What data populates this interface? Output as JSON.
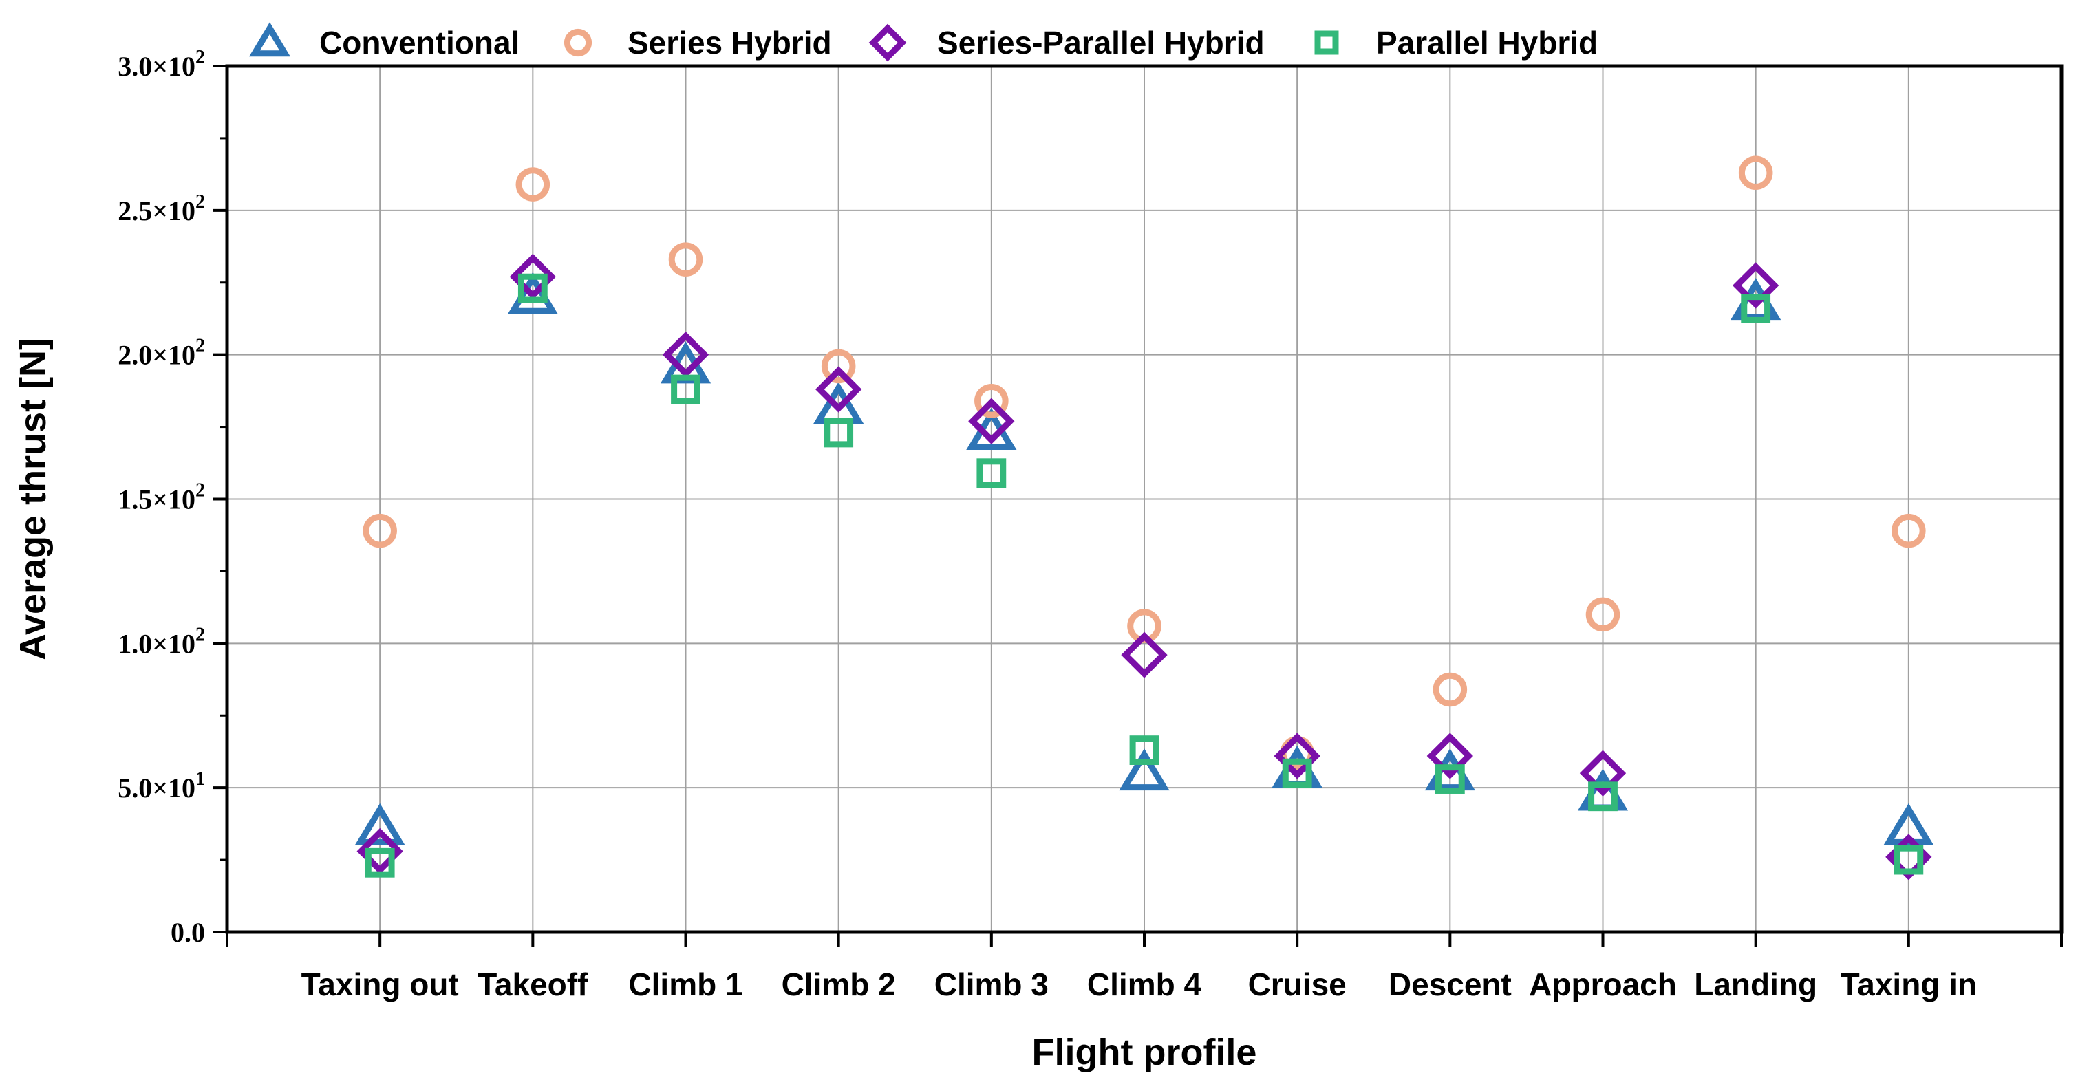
{
  "chart_data": {
    "type": "scatter",
    "title": "",
    "xlabel": "Flight profile",
    "ylabel": "Average thrust [N]",
    "ylim": [
      0,
      300
    ],
    "yticks": [
      {
        "value": 0,
        "mantissa": "0.0",
        "exp": ""
      },
      {
        "value": 50,
        "mantissa": "5.0×10",
        "exp": "1"
      },
      {
        "value": 100,
        "mantissa": "1.0×10",
        "exp": "2"
      },
      {
        "value": 150,
        "mantissa": "1.5×10",
        "exp": "2"
      },
      {
        "value": 200,
        "mantissa": "2.0×10",
        "exp": "2"
      },
      {
        "value": 250,
        "mantissa": "2.5×10",
        "exp": "2"
      },
      {
        "value": 300,
        "mantissa": "3.0×10",
        "exp": "2"
      }
    ],
    "categories": [
      "Taxing out",
      "Takeoff",
      "Climb 1",
      "Climb 2",
      "Climb 3",
      "Climb 4",
      "Cruise",
      "Descent",
      "Approach",
      "Landing",
      "Taxing in"
    ],
    "grid": true,
    "legend_position": "top",
    "series": [
      {
        "name": "Conventional",
        "marker": "triangle",
        "color": "#2e75b6",
        "values": [
          36,
          220,
          196,
          182,
          173,
          55,
          56,
          55,
          48,
          218,
          36
        ]
      },
      {
        "name": "Series Hybrid",
        "marker": "circle",
        "color": "#f0a988",
        "values": [
          139,
          259,
          233,
          196,
          184,
          106,
          62,
          84,
          110,
          263,
          139
        ]
      },
      {
        "name": "Series-Parallel Hybrid",
        "marker": "diamond",
        "color": "#7a0fa8",
        "values": [
          28,
          227,
          200,
          188,
          177,
          96,
          61,
          61,
          55,
          224,
          26
        ]
      },
      {
        "name": "Parallel Hybrid",
        "marker": "square",
        "color": "#33b87a",
        "values": [
          24,
          223,
          188,
          173,
          159,
          63,
          55,
          53,
          47,
          216,
          25
        ]
      }
    ]
  }
}
